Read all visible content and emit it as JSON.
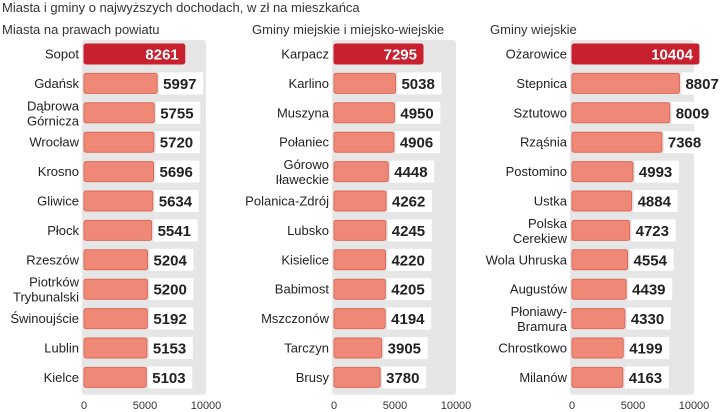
{
  "title": "Miasta i gminy o najwyższych dochodach, w zł na mieszkańca",
  "colors": {
    "highlight": "#c8202f",
    "bar": "#f08877",
    "bar_border": "#d96a5a",
    "track": "#e6e6e6"
  },
  "chart_data": [
    {
      "type": "bar",
      "orientation": "horizontal",
      "title": "Miasta na prawach powiatu",
      "categories": [
        [
          "Sopot"
        ],
        [
          "Gdańsk"
        ],
        [
          "Dąbrowa",
          "Górnicza"
        ],
        [
          "Wrocław"
        ],
        [
          "Krosno"
        ],
        [
          "Gliwice"
        ],
        [
          "Płock"
        ],
        [
          "Rzeszów"
        ],
        [
          "Piotrków",
          "Trybunalski"
        ],
        [
          "Świnoujście"
        ],
        [
          "Lublin"
        ],
        [
          "Kielce"
        ]
      ],
      "values": [
        8261,
        5997,
        5755,
        5720,
        5696,
        5634,
        5541,
        5204,
        5200,
        5192,
        5153,
        5103
      ],
      "xlim": [
        0,
        10000
      ],
      "xticks": [
        0,
        5000,
        10000
      ],
      "highlight_index": 0
    },
    {
      "type": "bar",
      "orientation": "horizontal",
      "title": "Gminy miejskie i miejsko-wiejskie",
      "categories": [
        [
          "Karpacz"
        ],
        [
          "Karlino"
        ],
        [
          "Muszyna"
        ],
        [
          "Połaniec"
        ],
        [
          "Górowo",
          "Iławeckie"
        ],
        [
          "Polanica-Zdrój"
        ],
        [
          "Lubsko"
        ],
        [
          "Kisielice"
        ],
        [
          "Babimost"
        ],
        [
          "Mszczonów"
        ],
        [
          "Tarczyn"
        ],
        [
          "Brusy"
        ]
      ],
      "values": [
        7295,
        5038,
        4950,
        4906,
        4448,
        4262,
        4245,
        4220,
        4205,
        4194,
        3905,
        3780
      ],
      "xlim": [
        0,
        10000
      ],
      "xticks": [
        0,
        5000,
        10000
      ],
      "highlight_index": 0
    },
    {
      "type": "bar",
      "orientation": "horizontal",
      "title": "Gminy wiejskie",
      "categories": [
        [
          "Ożarowice"
        ],
        [
          "Stepnica"
        ],
        [
          "Sztutowo"
        ],
        [
          "Rząśnia"
        ],
        [
          "Postomino"
        ],
        [
          "Ustka"
        ],
        [
          "Polska",
          "Cerekiew"
        ],
        [
          "Wola Uhruska"
        ],
        [
          "Augustów"
        ],
        [
          "Płoniawy-",
          "Bramura"
        ],
        [
          "Chrostkowo"
        ],
        [
          "Milanów"
        ]
      ],
      "values": [
        10404,
        8807,
        8009,
        7368,
        4993,
        4884,
        4723,
        4554,
        4439,
        4330,
        4199,
        4163
      ],
      "xlim": [
        0,
        10000
      ],
      "xticks": [
        0,
        5000,
        10000
      ],
      "highlight_index": 0
    }
  ]
}
